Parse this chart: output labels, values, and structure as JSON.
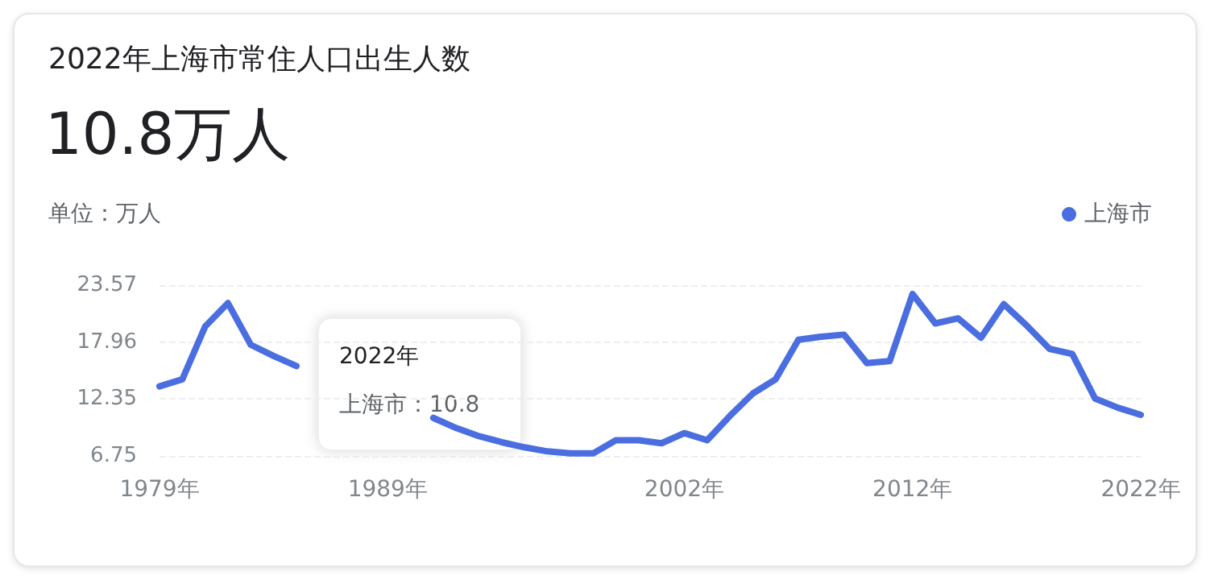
{
  "chart_data": {
    "type": "line",
    "title": "2022年上海市常住人口出生人数",
    "subtitle": "10.8万人",
    "ylabel": "单位：万人",
    "categories": [
      "1979年",
      null,
      null,
      null,
      null,
      null,
      null,
      null,
      null,
      null,
      "1989年",
      null,
      null,
      null,
      null,
      null,
      null,
      null,
      null,
      null,
      null,
      null,
      null,
      "2002年",
      null,
      null,
      null,
      null,
      null,
      null,
      null,
      null,
      null,
      "2012年",
      null,
      null,
      null,
      null,
      null,
      null,
      null,
      null,
      null,
      "2022年"
    ],
    "series": [
      {
        "name": "上海市",
        "color": "#4a6ee0",
        "values": [
          13.6,
          14.3,
          19.5,
          21.8,
          17.7,
          16.6,
          15.6,
          null,
          null,
          null,
          null,
          null,
          10.5,
          9.5,
          8.7,
          8.1,
          7.6,
          7.2,
          7.0,
          7.0,
          8.3,
          8.3,
          8.0,
          9.0,
          8.3,
          10.7,
          12.9,
          14.3,
          18.2,
          18.5,
          18.7,
          15.9,
          16.1,
          22.7,
          19.8,
          20.3,
          18.4,
          21.7,
          19.6,
          17.3,
          16.8,
          12.4,
          11.5,
          10.8
        ]
      }
    ],
    "ylim": [
      6.75,
      23.57
    ],
    "yticks": [
      6.75,
      12.35,
      17.96,
      23.57
    ],
    "grid": "y",
    "legend": "top right",
    "marker": "none",
    "line_style": "solid",
    "annotations": [
      "2022年",
      "上海市：10.8"
    ]
  }
}
